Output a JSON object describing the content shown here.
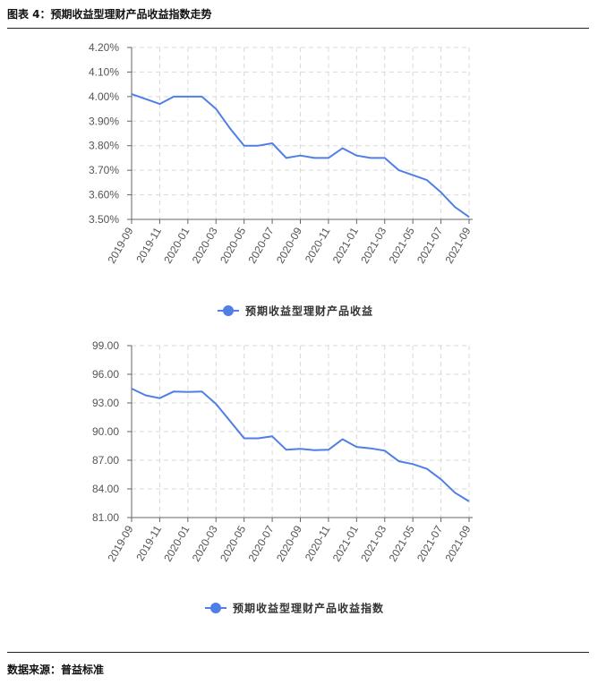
{
  "header": {
    "title": "图表 4：预期收益型理财产品收益指数走势"
  },
  "footer": {
    "source": "数据来源：普益标准"
  },
  "colors": {
    "line": "#4f7fe6",
    "grid": "#d9d9d9",
    "axis": "#666666"
  },
  "chart_data": [
    {
      "type": "line",
      "categories": [
        "2019-09",
        "2019-10",
        "2019-11",
        "2019-12",
        "2020-01",
        "2020-02",
        "2020-03",
        "2020-04",
        "2020-05",
        "2020-06",
        "2020-07",
        "2020-08",
        "2020-09",
        "2020-10",
        "2020-11",
        "2020-12",
        "2021-01",
        "2021-02",
        "2021-03",
        "2021-04",
        "2021-05",
        "2021-06",
        "2021-07",
        "2021-08",
        "2021-09"
      ],
      "tick_labels": [
        "2019-09",
        "2019-11",
        "2020-01",
        "2020-03",
        "2020-05",
        "2020-07",
        "2020-09",
        "2020-11",
        "2021-01",
        "2021-03",
        "2021-05",
        "2021-07",
        "2021-09"
      ],
      "series": [
        {
          "name": "预期收益型理财产品收益",
          "values": [
            4.01,
            3.99,
            3.97,
            4.0,
            4.0,
            4.0,
            3.95,
            3.87,
            3.8,
            3.8,
            3.81,
            3.75,
            3.76,
            3.75,
            3.75,
            3.79,
            3.76,
            3.75,
            3.75,
            3.7,
            3.68,
            3.66,
            3.61,
            3.55,
            3.51
          ]
        }
      ],
      "ylim": [
        3.5,
        4.2
      ],
      "yticks": [
        3.5,
        3.6,
        3.7,
        3.8,
        3.9,
        4.0,
        4.1,
        4.2
      ],
      "ytick_labels": [
        "3.50%",
        "3.60%",
        "3.70%",
        "3.80%",
        "3.90%",
        "4.00%",
        "4.10%",
        "4.20%"
      ],
      "grid": true,
      "legend": "bottom-center"
    },
    {
      "type": "line",
      "categories": [
        "2019-09",
        "2019-10",
        "2019-11",
        "2019-12",
        "2020-01",
        "2020-02",
        "2020-03",
        "2020-04",
        "2020-05",
        "2020-06",
        "2020-07",
        "2020-08",
        "2020-09",
        "2020-10",
        "2020-11",
        "2020-12",
        "2021-01",
        "2021-02",
        "2021-03",
        "2021-04",
        "2021-05",
        "2021-06",
        "2021-07",
        "2021-08",
        "2021-09"
      ],
      "tick_labels": [
        "2019-09",
        "2019-11",
        "2020-01",
        "2020-03",
        "2020-05",
        "2020-07",
        "2020-09",
        "2020-11",
        "2021-01",
        "2021-03",
        "2021-05",
        "2021-07",
        "2021-09"
      ],
      "series": [
        {
          "name": "预期收益型理财产品收益指数",
          "values": [
            94.5,
            93.8,
            93.5,
            94.2,
            94.15,
            94.2,
            92.9,
            91.1,
            89.3,
            89.3,
            89.5,
            88.1,
            88.2,
            88.05,
            88.1,
            89.2,
            88.4,
            88.25,
            88.0,
            86.9,
            86.6,
            86.1,
            85.0,
            83.6,
            82.7
          ]
        }
      ],
      "ylim": [
        81.0,
        99.0
      ],
      "yticks": [
        81,
        84,
        87,
        90,
        93,
        96,
        99
      ],
      "ytick_labels": [
        "81.00",
        "84.00",
        "87.00",
        "90.00",
        "93.00",
        "96.00",
        "99.00"
      ],
      "grid": true,
      "legend": "bottom-center"
    }
  ]
}
